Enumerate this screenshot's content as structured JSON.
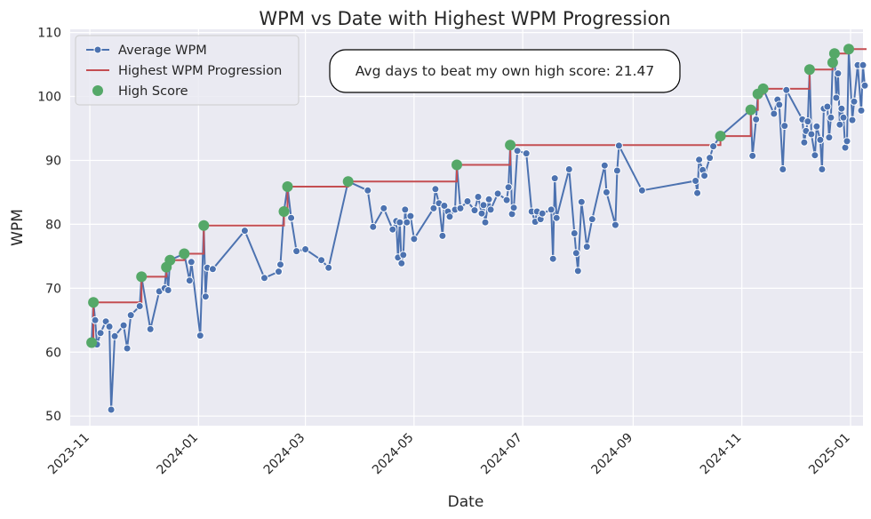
{
  "chart_data": {
    "type": "line",
    "title": "WPM vs Date with Highest WPM Progression",
    "xlabel": "Date",
    "ylabel": "WPM",
    "x_ticks": [
      "2023-11",
      "2024-01",
      "2024-03",
      "2024-05",
      "2024-07",
      "2024-09",
      "2024-11",
      "2025-01"
    ],
    "y_ticks": [
      50,
      60,
      70,
      80,
      90,
      100,
      110
    ],
    "xlim": [
      "2023-10-21",
      "2025-01-08"
    ],
    "ylim": [
      48.5,
      110.5
    ],
    "grid": true,
    "legend_position": "top-left",
    "legend": [
      "Average WPM",
      "Highest WPM Progression",
      "High Score"
    ],
    "annotation": "Avg days to beat my own high score: 21.47",
    "colors": {
      "average": "#4c72b0",
      "progression": "#c44e52",
      "high_score": "#55a868",
      "background": "#eaeaf2"
    },
    "series": [
      {
        "name": "Average WPM",
        "points": [
          [
            "2023-11-02",
            61.5
          ],
          [
            "2023-11-03",
            67.8
          ],
          [
            "2023-11-04",
            65.0
          ],
          [
            "2023-11-05",
            61.2
          ],
          [
            "2023-11-07",
            63.0
          ],
          [
            "2023-11-10",
            64.8
          ],
          [
            "2023-11-12",
            64.0
          ],
          [
            "2023-11-13",
            51.0
          ],
          [
            "2023-11-15",
            62.5
          ],
          [
            "2023-11-20",
            64.2
          ],
          [
            "2023-11-22",
            60.6
          ],
          [
            "2023-11-24",
            65.8
          ],
          [
            "2023-11-29",
            67.2
          ],
          [
            "2023-11-30",
            71.8
          ],
          [
            "2023-12-05",
            63.6
          ],
          [
            "2023-12-10",
            69.5
          ],
          [
            "2023-12-13",
            70.0
          ],
          [
            "2023-12-14",
            73.3
          ],
          [
            "2023-12-15",
            69.7
          ],
          [
            "2023-12-16",
            74.4
          ],
          [
            "2023-12-24",
            75.4
          ],
          [
            "2023-12-27",
            71.2
          ],
          [
            "2023-12-28",
            74.1
          ],
          [
            "2024-01-02",
            62.6
          ],
          [
            "2024-01-04",
            79.8
          ],
          [
            "2024-01-05",
            68.7
          ],
          [
            "2024-01-06",
            73.2
          ],
          [
            "2024-01-09",
            73.0
          ],
          [
            "2024-01-27",
            79.0
          ],
          [
            "2024-02-07",
            71.6
          ],
          [
            "2024-02-15",
            72.6
          ],
          [
            "2024-02-16",
            73.7
          ],
          [
            "2024-02-18",
            82.0
          ],
          [
            "2024-02-20",
            85.9
          ],
          [
            "2024-02-22",
            81.0
          ],
          [
            "2024-02-25",
            75.8
          ],
          [
            "2024-03-01",
            76.1
          ],
          [
            "2024-03-10",
            74.4
          ],
          [
            "2024-03-14",
            73.2
          ],
          [
            "2024-03-25",
            86.7
          ],
          [
            "2024-04-05",
            85.3
          ],
          [
            "2024-04-08",
            79.6
          ],
          [
            "2024-04-14",
            82.5
          ],
          [
            "2024-04-19",
            79.2
          ],
          [
            "2024-04-21",
            80.5
          ],
          [
            "2024-04-22",
            74.8
          ],
          [
            "2024-04-23",
            80.3
          ],
          [
            "2024-04-24",
            73.9
          ],
          [
            "2024-04-25",
            75.2
          ],
          [
            "2024-04-26",
            82.3
          ],
          [
            "2024-04-27",
            80.3
          ],
          [
            "2024-04-29",
            81.3
          ],
          [
            "2024-05-01",
            77.7
          ],
          [
            "2024-05-12",
            82.5
          ],
          [
            "2024-05-13",
            85.5
          ],
          [
            "2024-05-15",
            83.3
          ],
          [
            "2024-05-17",
            78.2
          ],
          [
            "2024-05-18",
            82.9
          ],
          [
            "2024-05-20",
            82.0
          ],
          [
            "2024-05-21",
            81.2
          ],
          [
            "2024-05-24",
            82.3
          ],
          [
            "2024-05-25",
            89.3
          ],
          [
            "2024-05-27",
            82.5
          ],
          [
            "2024-05-31",
            83.6
          ],
          [
            "2024-06-04",
            82.2
          ],
          [
            "2024-06-06",
            84.3
          ],
          [
            "2024-06-08",
            81.7
          ],
          [
            "2024-06-09",
            83.0
          ],
          [
            "2024-06-10",
            80.3
          ],
          [
            "2024-06-12",
            83.9
          ],
          [
            "2024-06-13",
            82.3
          ],
          [
            "2024-06-17",
            84.8
          ],
          [
            "2024-06-22",
            83.8
          ],
          [
            "2024-06-23",
            85.8
          ],
          [
            "2024-06-24",
            92.4
          ],
          [
            "2024-06-25",
            81.6
          ],
          [
            "2024-06-26",
            82.6
          ],
          [
            "2024-06-28",
            91.5
          ],
          [
            "2024-07-03",
            91.1
          ],
          [
            "2024-07-06",
            82.0
          ],
          [
            "2024-07-08",
            80.4
          ],
          [
            "2024-07-09",
            82.0
          ],
          [
            "2024-07-11",
            80.8
          ],
          [
            "2024-07-12",
            81.7
          ],
          [
            "2024-07-17",
            82.3
          ],
          [
            "2024-07-18",
            74.6
          ],
          [
            "2024-07-19",
            87.2
          ],
          [
            "2024-07-20",
            81.0
          ],
          [
            "2024-07-27",
            88.6
          ],
          [
            "2024-07-30",
            78.6
          ],
          [
            "2024-07-31",
            75.5
          ],
          [
            "2024-08-01",
            72.7
          ],
          [
            "2024-08-03",
            83.5
          ],
          [
            "2024-08-06",
            76.5
          ],
          [
            "2024-08-09",
            80.8
          ],
          [
            "2024-08-16",
            89.2
          ],
          [
            "2024-08-17",
            85.0
          ],
          [
            "2024-08-22",
            79.9
          ],
          [
            "2024-08-23",
            88.4
          ],
          [
            "2024-08-24",
            92.3
          ],
          [
            "2024-09-06",
            85.3
          ],
          [
            "2024-10-06",
            86.8
          ],
          [
            "2024-10-07",
            84.9
          ],
          [
            "2024-10-08",
            90.1
          ],
          [
            "2024-10-10",
            88.5
          ],
          [
            "2024-10-11",
            87.6
          ],
          [
            "2024-10-14",
            90.4
          ],
          [
            "2024-10-16",
            92.2
          ],
          [
            "2024-10-20",
            93.8
          ],
          [
            "2024-11-06",
            97.9
          ],
          [
            "2024-11-07",
            90.7
          ],
          [
            "2024-11-09",
            96.4
          ],
          [
            "2024-11-10",
            100.4
          ],
          [
            "2024-11-13",
            101.2
          ],
          [
            "2024-11-19",
            97.3
          ],
          [
            "2024-11-21",
            99.5
          ],
          [
            "2024-11-22",
            98.7
          ],
          [
            "2024-11-24",
            88.6
          ],
          [
            "2024-11-25",
            95.4
          ],
          [
            "2024-11-26",
            101.0
          ],
          [
            "2024-12-05",
            96.4
          ],
          [
            "2024-12-06",
            92.8
          ],
          [
            "2024-12-07",
            94.6
          ],
          [
            "2024-12-08",
            96.1
          ],
          [
            "2024-12-09",
            104.2
          ],
          [
            "2024-12-10",
            94.1
          ],
          [
            "2024-12-12",
            90.8
          ],
          [
            "2024-12-13",
            95.3
          ],
          [
            "2024-12-15",
            93.2
          ],
          [
            "2024-12-16",
            88.6
          ],
          [
            "2024-12-17",
            98.1
          ],
          [
            "2024-12-19",
            98.4
          ],
          [
            "2024-12-20",
            93.6
          ],
          [
            "2024-12-21",
            96.7
          ],
          [
            "2024-12-22",
            105.3
          ],
          [
            "2024-12-23",
            106.7
          ],
          [
            "2024-12-24",
            99.8
          ],
          [
            "2024-12-25",
            103.6
          ],
          [
            "2024-12-26",
            95.6
          ],
          [
            "2024-12-27",
            98.1
          ],
          [
            "2024-12-28",
            96.7
          ],
          [
            "2024-12-29",
            92.0
          ],
          [
            "2024-12-30",
            93.0
          ],
          [
            "2024-12-31",
            107.4
          ],
          [
            "2025-01-02",
            96.3
          ],
          [
            "2025-01-03",
            99.2
          ],
          [
            "2025-01-05",
            104.9
          ],
          [
            "2025-01-07",
            97.8
          ],
          [
            "2025-01-08",
            104.9
          ],
          [
            "2025-01-09",
            101.7
          ]
        ]
      },
      {
        "name": "Highest WPM Progression",
        "points": [
          [
            "2023-11-02",
            61.5
          ],
          [
            "2023-11-03",
            67.8
          ],
          [
            "2023-11-30",
            71.8
          ],
          [
            "2023-12-14",
            73.3
          ],
          [
            "2023-12-16",
            74.4
          ],
          [
            "2023-12-24",
            75.4
          ],
          [
            "2024-01-04",
            79.8
          ],
          [
            "2024-02-18",
            82.0
          ],
          [
            "2024-02-20",
            85.9
          ],
          [
            "2024-03-25",
            86.7
          ],
          [
            "2024-05-25",
            89.3
          ],
          [
            "2024-06-24",
            92.4
          ],
          [
            "2024-10-20",
            93.8
          ],
          [
            "2024-11-06",
            97.9
          ],
          [
            "2024-11-10",
            100.4
          ],
          [
            "2024-11-13",
            101.2
          ],
          [
            "2024-12-09",
            104.2
          ],
          [
            "2024-12-22",
            105.3
          ],
          [
            "2024-12-23",
            106.7
          ],
          [
            "2024-12-31",
            107.4
          ],
          [
            "2025-01-10",
            107.4
          ]
        ]
      },
      {
        "name": "High Score",
        "points": [
          [
            "2023-11-02",
            61.5
          ],
          [
            "2023-11-03",
            67.8
          ],
          [
            "2023-11-30",
            71.8
          ],
          [
            "2023-12-14",
            73.3
          ],
          [
            "2023-12-16",
            74.4
          ],
          [
            "2023-12-24",
            75.4
          ],
          [
            "2024-01-04",
            79.8
          ],
          [
            "2024-02-18",
            82.0
          ],
          [
            "2024-02-20",
            85.9
          ],
          [
            "2024-03-25",
            86.7
          ],
          [
            "2024-05-25",
            89.3
          ],
          [
            "2024-06-24",
            92.4
          ],
          [
            "2024-10-20",
            93.8
          ],
          [
            "2024-11-06",
            97.9
          ],
          [
            "2024-11-10",
            100.4
          ],
          [
            "2024-11-13",
            101.2
          ],
          [
            "2024-12-09",
            104.2
          ],
          [
            "2024-12-22",
            105.3
          ],
          [
            "2024-12-23",
            106.7
          ],
          [
            "2024-12-31",
            107.4
          ]
        ]
      }
    ]
  }
}
